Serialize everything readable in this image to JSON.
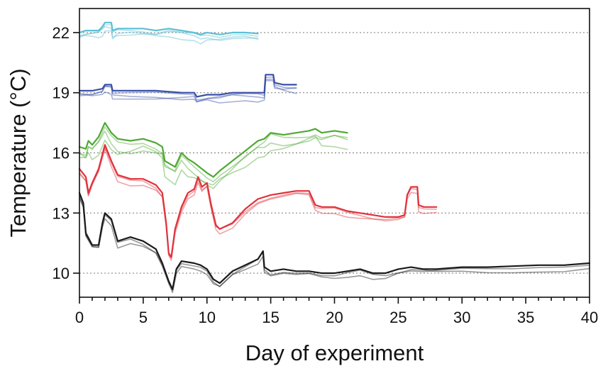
{
  "chart_data": {
    "type": "line",
    "title": "",
    "xlabel": "Day of experiment",
    "ylabel": "Temperature (°C)",
    "xlim": [
      0,
      40
    ],
    "ylim": [
      8.8,
      23.2
    ],
    "x_ticks": [
      0,
      5,
      10,
      15,
      20,
      25,
      30,
      35,
      40
    ],
    "y_ticks": [
      10,
      13,
      16,
      19,
      22
    ],
    "x_minor_step": 1,
    "grid": "dotted horizontal lines at y ticks",
    "legend": "none",
    "series": [
      {
        "color": "#5bbfd3",
        "replicates": [
          0,
          -0.15,
          -0.3,
          -0.45
        ],
        "points": [
          [
            0,
            22.0
          ],
          [
            0.5,
            22.1
          ],
          [
            1,
            22.1
          ],
          [
            1.5,
            22.1
          ],
          [
            1.8,
            22.3
          ],
          [
            2,
            22.5
          ],
          [
            2.5,
            22.5
          ],
          [
            2.6,
            22.1
          ],
          [
            3,
            22.2
          ],
          [
            4,
            22.2
          ],
          [
            5,
            22.2
          ],
          [
            6,
            22.1
          ],
          [
            7,
            22.2
          ],
          [
            8,
            22.1
          ],
          [
            9,
            22.0
          ],
          [
            9.5,
            21.9
          ],
          [
            10,
            22.0
          ],
          [
            11,
            21.9
          ],
          [
            12,
            22.0
          ],
          [
            13,
            22.0
          ],
          [
            14,
            21.95
          ]
        ]
      },
      {
        "color": "#3a4fa6",
        "replicates": [
          0,
          -0.15,
          -0.3,
          -0.45
        ],
        "points": [
          [
            0,
            19.1
          ],
          [
            1,
            19.1
          ],
          [
            1.8,
            19.2
          ],
          [
            2,
            19.4
          ],
          [
            2.5,
            19.4
          ],
          [
            2.6,
            19.1
          ],
          [
            4,
            19.1
          ],
          [
            6,
            19.1
          ],
          [
            8,
            19.0
          ],
          [
            9,
            19.0
          ],
          [
            9.2,
            18.8
          ],
          [
            10,
            18.9
          ],
          [
            11,
            18.9
          ],
          [
            12,
            19.0
          ],
          [
            13,
            19.0
          ],
          [
            14,
            19.0
          ],
          [
            14.5,
            19.0
          ],
          [
            14.6,
            19.9
          ],
          [
            15.2,
            19.9
          ],
          [
            15.3,
            19.5
          ],
          [
            16,
            19.4
          ],
          [
            17,
            19.4
          ]
        ]
      },
      {
        "color": "#4ea832",
        "replicates": [
          0,
          -0.3,
          -0.6,
          -0.9
        ],
        "points": [
          [
            0,
            16.3
          ],
          [
            0.5,
            16.2
          ],
          [
            0.7,
            16.6
          ],
          [
            1,
            16.4
          ],
          [
            1.5,
            16.8
          ],
          [
            2,
            17.5
          ],
          [
            2.5,
            17.0
          ],
          [
            3,
            16.7
          ],
          [
            4,
            16.6
          ],
          [
            5,
            16.7
          ],
          [
            6,
            16.5
          ],
          [
            6.5,
            16.3
          ],
          [
            6.7,
            15.6
          ],
          [
            7.5,
            15.3
          ],
          [
            8,
            16.0
          ],
          [
            8.5,
            15.7
          ],
          [
            9,
            15.5
          ],
          [
            10,
            15.0
          ],
          [
            10.5,
            14.8
          ],
          [
            11,
            15.1
          ],
          [
            12,
            15.6
          ],
          [
            13,
            16.1
          ],
          [
            14,
            16.6
          ],
          [
            14.5,
            16.7
          ],
          [
            15,
            17.0
          ],
          [
            16,
            16.9
          ],
          [
            17,
            17.0
          ],
          [
            18,
            17.1
          ],
          [
            18.5,
            17.2
          ],
          [
            19,
            17.0
          ],
          [
            20,
            17.1
          ],
          [
            21,
            17.0
          ]
        ]
      },
      {
        "color": "#e0323c",
        "replicates": [
          0,
          -0.15,
          -0.3
        ],
        "points": [
          [
            0,
            15.2
          ],
          [
            0.5,
            14.8
          ],
          [
            0.7,
            14.0
          ],
          [
            1,
            14.5
          ],
          [
            1.5,
            15.2
          ],
          [
            2,
            16.4
          ],
          [
            2.5,
            15.6
          ],
          [
            3,
            14.9
          ],
          [
            4,
            14.7
          ],
          [
            5,
            14.7
          ],
          [
            6,
            14.4
          ],
          [
            6.5,
            14.0
          ],
          [
            6.8,
            12.5
          ],
          [
            7,
            11.0
          ],
          [
            7.2,
            10.8
          ],
          [
            7.5,
            12.2
          ],
          [
            8,
            13.3
          ],
          [
            8.5,
            14.0
          ],
          [
            9,
            14.2
          ],
          [
            9.3,
            14.8
          ],
          [
            9.6,
            14.3
          ],
          [
            10,
            14.5
          ],
          [
            10.3,
            13.5
          ],
          [
            10.7,
            12.4
          ],
          [
            11,
            12.2
          ],
          [
            12,
            12.5
          ],
          [
            13,
            13.2
          ],
          [
            14,
            13.7
          ],
          [
            15,
            13.9
          ],
          [
            16,
            14.0
          ],
          [
            17,
            14.1
          ],
          [
            18,
            14.1
          ],
          [
            18.5,
            13.4
          ],
          [
            19,
            13.3
          ],
          [
            20,
            13.3
          ],
          [
            21,
            13.1
          ],
          [
            22,
            13.0
          ],
          [
            23,
            12.9
          ],
          [
            24,
            12.8
          ],
          [
            25,
            12.8
          ],
          [
            25.5,
            12.9
          ],
          [
            25.7,
            13.9
          ],
          [
            26,
            14.3
          ],
          [
            26.5,
            14.3
          ],
          [
            26.6,
            13.4
          ],
          [
            27,
            13.3
          ],
          [
            28,
            13.3
          ]
        ]
      },
      {
        "color": "#1a1a1a",
        "replicates": [
          0,
          -0.15,
          -0.3
        ],
        "points": [
          [
            0,
            14.0
          ],
          [
            0.3,
            13.5
          ],
          [
            0.5,
            12.0
          ],
          [
            1,
            11.4
          ],
          [
            1.5,
            11.4
          ],
          [
            1.8,
            12.5
          ],
          [
            2,
            13.0
          ],
          [
            2.5,
            12.7
          ],
          [
            3,
            11.6
          ],
          [
            4,
            11.8
          ],
          [
            5,
            11.6
          ],
          [
            6,
            11.2
          ],
          [
            6.5,
            10.5
          ],
          [
            7,
            9.6
          ],
          [
            7.3,
            9.2
          ],
          [
            7.6,
            10.2
          ],
          [
            8,
            10.6
          ],
          [
            9,
            10.5
          ],
          [
            9.5,
            10.4
          ],
          [
            10,
            10.2
          ],
          [
            10.5,
            9.7
          ],
          [
            11,
            9.5
          ],
          [
            12,
            10.1
          ],
          [
            13,
            10.4
          ],
          [
            14,
            10.7
          ],
          [
            14.4,
            11.1
          ],
          [
            14.5,
            10.3
          ],
          [
            15,
            10.1
          ],
          [
            16,
            10.2
          ],
          [
            17,
            10.1
          ],
          [
            18,
            10.1
          ],
          [
            19,
            10.0
          ],
          [
            20,
            10.0
          ],
          [
            21,
            10.1
          ],
          [
            22,
            10.2
          ],
          [
            23,
            10.0
          ],
          [
            24,
            10.0
          ],
          [
            25,
            10.2
          ],
          [
            26,
            10.3
          ],
          [
            27,
            10.2
          ],
          [
            28,
            10.2
          ],
          [
            30,
            10.3
          ],
          [
            32,
            10.3
          ],
          [
            34,
            10.35
          ],
          [
            36,
            10.4
          ],
          [
            38,
            10.4
          ],
          [
            40,
            10.5
          ]
        ]
      }
    ]
  }
}
